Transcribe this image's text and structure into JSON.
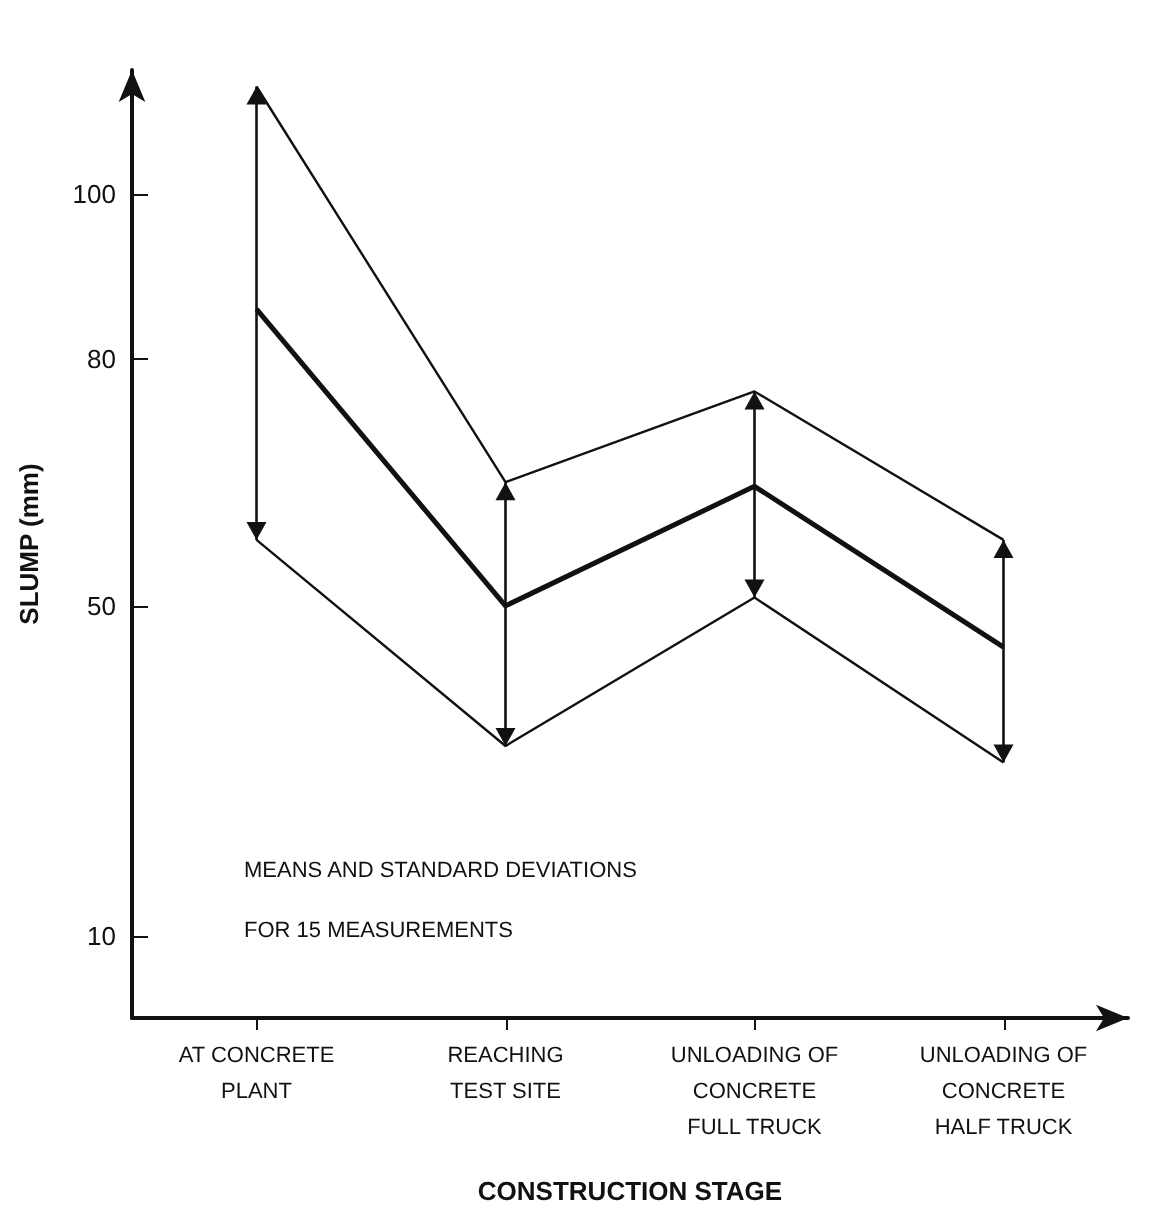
{
  "chart_data": {
    "type": "line",
    "xlabel": "CONSTRUCTION STAGE",
    "ylabel": "SLUMP (mm)",
    "categories": [
      "AT CONCRETE\nPLANT",
      "REACHING\nTEST SITE",
      "UNLOADING OF\nCONCRETE\nFULL TRUCK",
      "UNLOADING OF\nCONCRETE\nHALF TRUCK"
    ],
    "series": [
      {
        "color": "#111111",
        "values": [
          86,
          50,
          64.5,
          45
        ],
        "errors": [
          [
            58,
            113
          ],
          [
            33,
            65
          ],
          [
            51,
            76
          ],
          [
            31,
            58
          ]
        ]
      }
    ],
    "ylim": [
      0,
      115
    ],
    "yticks": [
      10,
      50,
      80,
      100
    ],
    "grid": false,
    "marker": "none",
    "line_style": "solid",
    "annotations": [
      "MEANS AND STANDARD DEVIATIONS",
      "FOR 15 MEASUREMENTS"
    ]
  }
}
